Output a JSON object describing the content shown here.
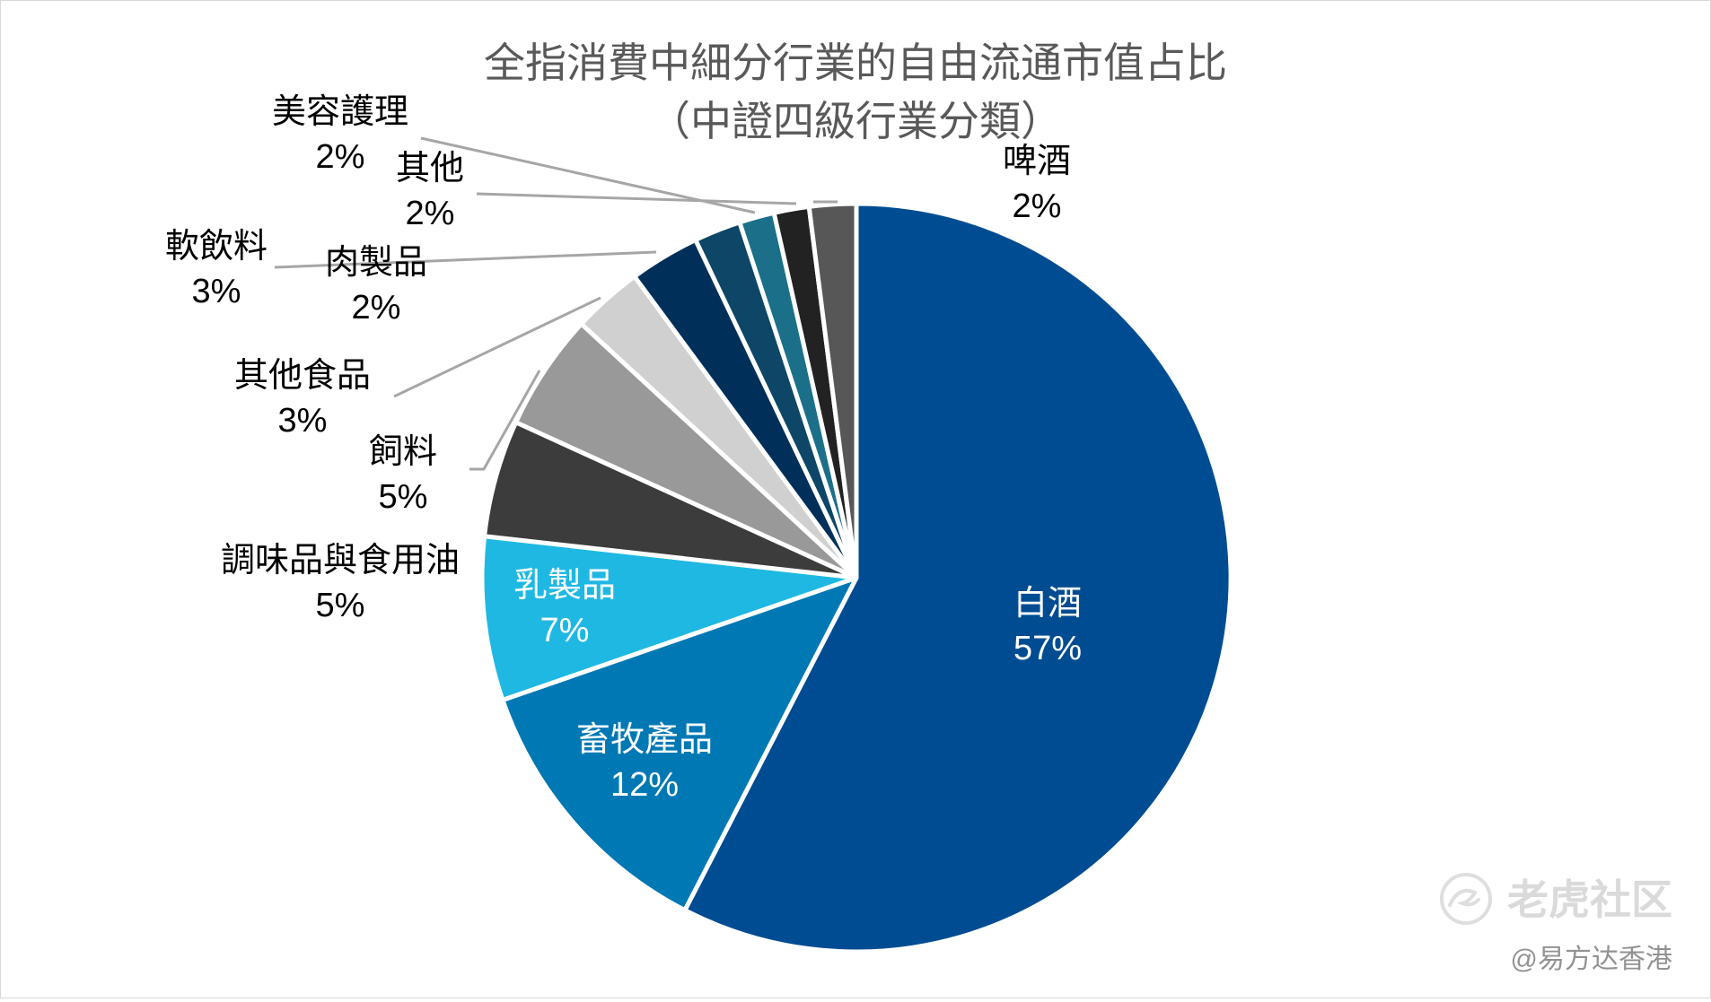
{
  "chart_data": {
    "type": "pie",
    "title": "全指消費中細分行業的自由流通市值占比",
    "subtitle": "（中證四級行業分類）",
    "slices": [
      {
        "name": "白酒",
        "value": 57,
        "label": "57%",
        "color": "#004c92",
        "label_color": "#ffffff"
      },
      {
        "name": "畜牧產品",
        "value": 12,
        "label": "12%",
        "color": "#0078b4",
        "label_color": "#ffffff"
      },
      {
        "name": "乳製品",
        "value": 7,
        "label": "7%",
        "color": "#1fb8e3",
        "label_color": "#ffffff"
      },
      {
        "name": "調味品與食用油",
        "value": 5,
        "label": "5%",
        "color": "#3c3c3c",
        "label_color": "#000000"
      },
      {
        "name": "飼料",
        "value": 5,
        "label": "5%",
        "color": "#999999",
        "label_color": "#000000"
      },
      {
        "name": "其他食品",
        "value": 3,
        "label": "3%",
        "color": "#d0d0d0",
        "label_color": "#000000"
      },
      {
        "name": "軟飲料",
        "value": 3,
        "label": "3%",
        "color": "#00305a",
        "label_color": "#000000"
      },
      {
        "name": "肉製品",
        "value": 2,
        "label": "2%",
        "color": "#0d4666",
        "label_color": "#000000"
      },
      {
        "name": "美容護理",
        "value": 1.5,
        "label": "2%",
        "color": "#1b6f89",
        "label_color": "#000000"
      },
      {
        "name": "其他",
        "value": 1.5,
        "label": "2%",
        "color": "#222222",
        "label_color": "#000000"
      },
      {
        "name": "啤酒",
        "value": 2,
        "label": "2%",
        "color": "#575757",
        "label_color": "#000000"
      }
    ],
    "leader_line_color": "#a6a6a6",
    "slice_border_color": "#ffffff"
  },
  "watermark": {
    "brand": "老虎社区",
    "handle": "@易方达香港"
  }
}
